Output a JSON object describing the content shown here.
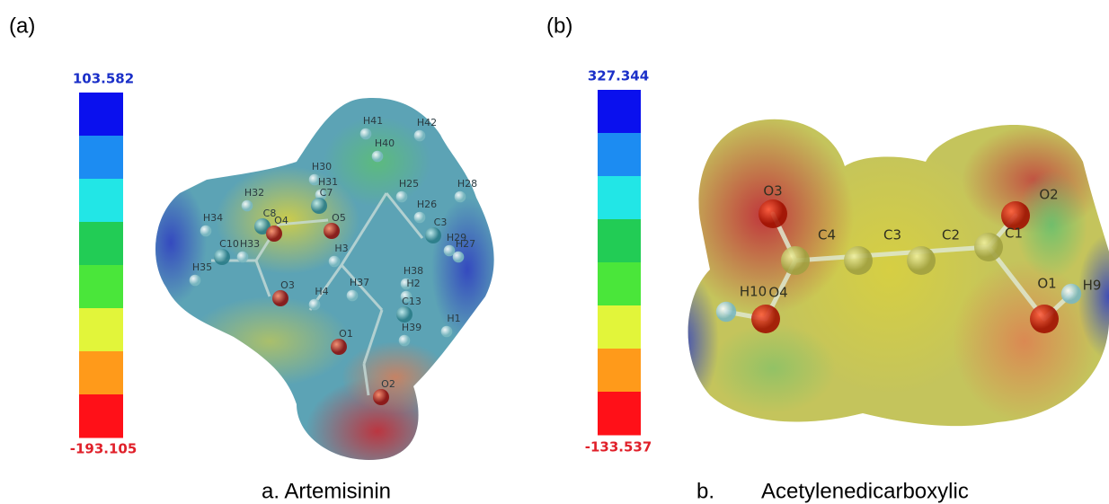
{
  "scale_colors": [
    "#0a10ee",
    "#1c8cf2",
    "#22e6e6",
    "#22cc55",
    "#4ae63a",
    "#e2f53a",
    "#ff9a1a",
    "#ff1018"
  ],
  "panels": [
    {
      "label": "(a)",
      "scale_max": "103.582",
      "scale_min": "-193.105",
      "caption": "a. Artemisinin",
      "atoms": [
        "H41",
        "H42",
        "H40",
        "H30",
        "H31",
        "H32",
        "C7",
        "C8",
        "O4",
        "O5",
        "H25",
        "H26",
        "H28",
        "H34",
        "C10",
        "H33",
        "H3",
        "C3",
        "H29",
        "H27",
        "H35",
        "H38",
        "O3",
        "H4",
        "H37",
        "H2",
        "C13",
        "H39",
        "O1",
        "O2",
        "H1"
      ]
    },
    {
      "label": "(b)",
      "scale_max": "327.344",
      "scale_min": "-133.537",
      "caption": "b.        Acetylenedicarboxylic",
      "atoms": [
        "O3",
        "C4",
        "C3",
        "C2",
        "C1",
        "O2",
        "H10",
        "O4",
        "O1",
        "H9"
      ]
    }
  ]
}
